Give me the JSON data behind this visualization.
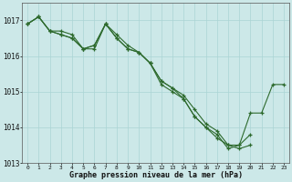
{
  "x": [
    0,
    1,
    2,
    3,
    4,
    5,
    6,
    7,
    8,
    9,
    10,
    11,
    12,
    13,
    14,
    15,
    16,
    17,
    18,
    19,
    20,
    21,
    22,
    23
  ],
  "series1": [
    1016.9,
    1017.1,
    1016.7,
    1016.7,
    1016.6,
    1016.2,
    1016.2,
    1016.9,
    1016.5,
    1016.2,
    1016.1,
    1015.8,
    1015.2,
    1015.0,
    1014.8,
    1014.3,
    1014.0,
    1013.7,
    1013.5,
    1013.5,
    1014.4,
    1014.4,
    1015.2,
    1015.2
  ],
  "series2": [
    1016.9,
    1017.1,
    1016.7,
    1016.6,
    1016.5,
    1016.2,
    1016.3,
    1016.9,
    1016.6,
    1016.3,
    1016.1,
    1015.8,
    1015.3,
    1015.1,
    1014.9,
    1014.5,
    1014.1,
    1013.9,
    1013.5,
    1013.4,
    1013.5,
    null,
    null,
    null
  ],
  "series3": [
    1016.9,
    1017.1,
    1016.7,
    1016.6,
    1016.5,
    1016.2,
    1016.3,
    1016.9,
    1016.5,
    1016.2,
    1016.1,
    1015.8,
    1015.3,
    1015.1,
    1014.8,
    1014.3,
    1014.0,
    1013.8,
    1013.4,
    1013.5,
    1013.8,
    null,
    null,
    null
  ],
  "line_color": "#2d6a2d",
  "marker": "+",
  "markersize": 3.5,
  "linewidth": 0.8,
  "background_color": "#cce8e8",
  "grid_color": "#aad4d4",
  "xlabel": "Graphe pression niveau de la mer (hPa)",
  "xlim": [
    -0.5,
    23.5
  ],
  "ylim": [
    1013.0,
    1017.5
  ],
  "yticks": [
    1013,
    1014,
    1015,
    1016,
    1017
  ],
  "xticks": [
    0,
    1,
    2,
    3,
    4,
    5,
    6,
    7,
    8,
    9,
    10,
    11,
    12,
    13,
    14,
    15,
    16,
    17,
    18,
    19,
    20,
    21,
    22,
    23
  ]
}
